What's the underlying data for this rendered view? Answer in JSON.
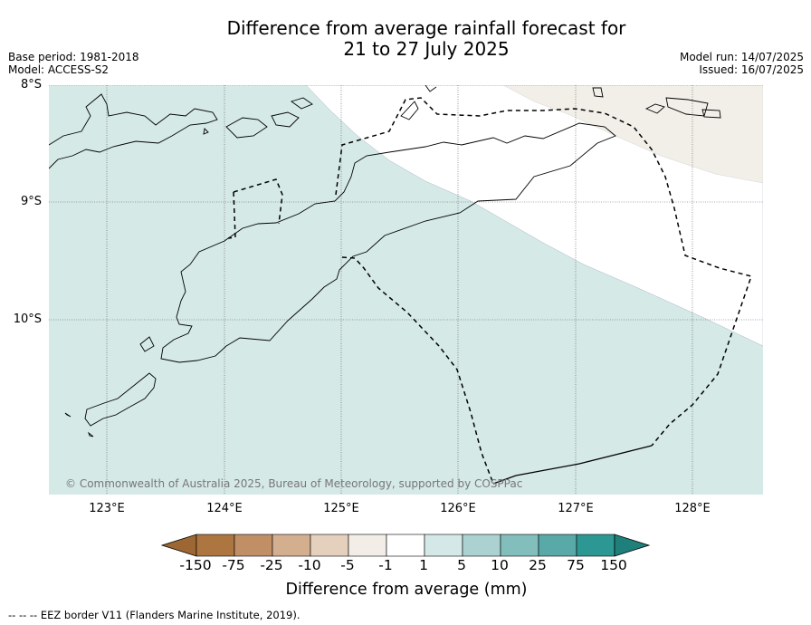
{
  "title_line1": "Difference from average rainfall forecast for",
  "title_line2": "21 to 27 July 2025",
  "base_period": "Base period: 1981-2018",
  "model": "Model: ACCESS-S2",
  "model_run": "Model run: 14/07/2025",
  "issued": "Issued: 16/07/2025",
  "lat_labels": [
    "8°S",
    "9°S",
    "10°S"
  ],
  "lon_labels": [
    "123°E",
    "124°E",
    "125°E",
    "126°E",
    "127°E",
    "128°E"
  ],
  "copyright": "© Commonwealth of Australia 2025, Bureau of Meteorology, supported by COSPPac",
  "colorbar": {
    "title": "Difference from average (mm)",
    "tick_labels": [
      "-150",
      "-75",
      "-25",
      "-10",
      "-5",
      "-1",
      "1",
      "5",
      "10",
      "25",
      "75",
      "150"
    ],
    "colors": [
      "#9c6732",
      "#ad7640",
      "#c08f66",
      "#d3af90",
      "#e4d0bd",
      "#f2ede6",
      "#ffffff",
      "#d4e9e7",
      "#abd2d0",
      "#82bebb",
      "#58a9a7",
      "#2d9893",
      "#1f7f7a"
    ]
  },
  "footer": "--  --  -- EEZ border V11 (Flanders Marine Institute, 2019).",
  "map": {
    "background_anomaly_color": "#d5e9e7",
    "dry_anomaly_color": "#f2efe9",
    "neutral_color": "#ffffff"
  }
}
